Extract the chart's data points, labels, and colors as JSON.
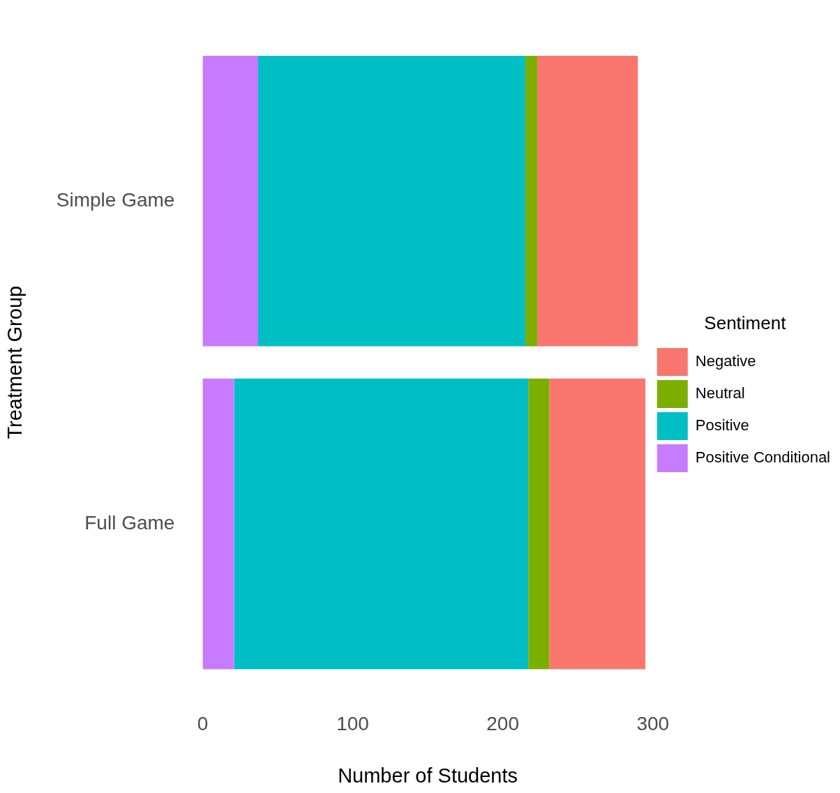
{
  "chart_data": {
    "type": "bar",
    "orientation": "horizontal",
    "stacked": true,
    "xlabel": "Number of Students",
    "ylabel": "Treatment Group",
    "legend_title": "Sentiment",
    "categories": [
      "Simple Game",
      "Full Game"
    ],
    "series": [
      {
        "name": "Positive Conditional",
        "color": "#c77cff",
        "values": [
          37,
          21
        ]
      },
      {
        "name": "Positive",
        "color": "#00bfc4",
        "values": [
          178,
          196
        ]
      },
      {
        "name": "Neutral",
        "color": "#7cae00",
        "values": [
          8,
          14
        ]
      },
      {
        "name": "Negative",
        "color": "#f8766d",
        "values": [
          67,
          64
        ]
      }
    ],
    "xlim": [
      0,
      300
    ],
    "xticks": [
      0,
      100,
      200,
      300
    ],
    "grid": false,
    "legend": "right"
  }
}
